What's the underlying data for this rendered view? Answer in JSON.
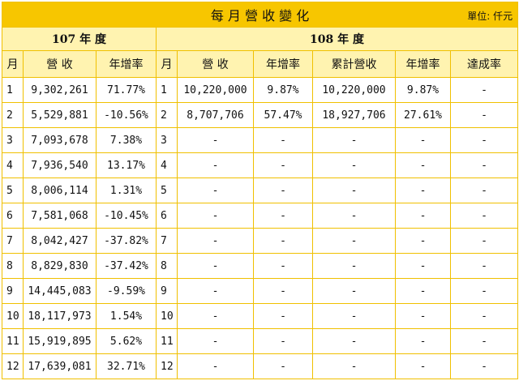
{
  "header": {
    "title": "每 月 營 收 變 化",
    "unit": "單位: 仟元"
  },
  "year_headers": [
    "107 年 度",
    "108 年 度"
  ],
  "columns": [
    "月",
    "營 收",
    "年增率",
    "月",
    "營 收",
    "年增率",
    "累計營收",
    "年增率",
    "達成率"
  ],
  "rows": [
    [
      "1",
      "9,302,261",
      "71.77%",
      "1",
      "10,220,000",
      "9.87%",
      "10,220,000",
      "9.87%",
      "-"
    ],
    [
      "2",
      "5,529,881",
      "-10.56%",
      "2",
      "8,707,706",
      "57.47%",
      "18,927,706",
      "27.61%",
      "-"
    ],
    [
      "3",
      "7,093,678",
      "7.38%",
      "3",
      "-",
      "-",
      "-",
      "-",
      "-"
    ],
    [
      "4",
      "7,936,540",
      "13.17%",
      "4",
      "-",
      "-",
      "-",
      "-",
      "-"
    ],
    [
      "5",
      "8,006,114",
      "1.31%",
      "5",
      "-",
      "-",
      "-",
      "-",
      "-"
    ],
    [
      "6",
      "7,581,068",
      "-10.45%",
      "6",
      "-",
      "-",
      "-",
      "-",
      "-"
    ],
    [
      "7",
      "8,042,427",
      "-37.82%",
      "7",
      "-",
      "-",
      "-",
      "-",
      "-"
    ],
    [
      "8",
      "8,829,830",
      "-37.42%",
      "8",
      "-",
      "-",
      "-",
      "-",
      "-"
    ],
    [
      "9",
      "14,445,083",
      "-9.59%",
      "9",
      "-",
      "-",
      "-",
      "-",
      "-"
    ],
    [
      "10",
      "18,117,973",
      "1.54%",
      "10",
      "-",
      "-",
      "-",
      "-",
      "-"
    ],
    [
      "11",
      "15,919,895",
      "5.62%",
      "11",
      "-",
      "-",
      "-",
      "-",
      "-"
    ],
    [
      "12",
      "17,639,081",
      "32.71%",
      "12",
      "-",
      "-",
      "-",
      "-",
      "-"
    ]
  ]
}
